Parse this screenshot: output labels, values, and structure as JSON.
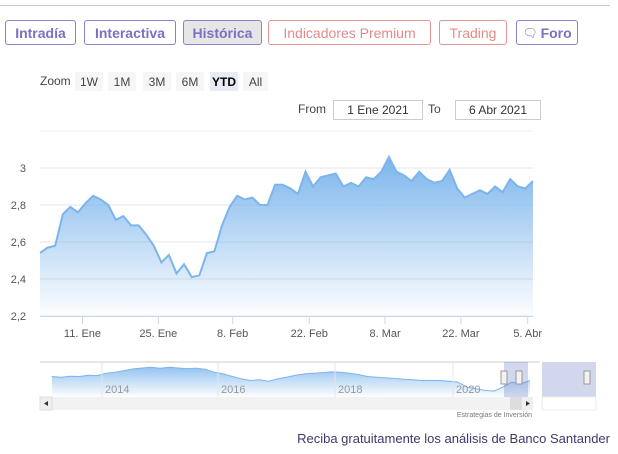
{
  "tabs": [
    {
      "label": "Intradía",
      "style": "purple"
    },
    {
      "label": "Interactiva",
      "style": "purple"
    },
    {
      "label": "Histórica",
      "style": "purple",
      "active": true
    },
    {
      "label": "Indicadores Premium",
      "style": "red"
    },
    {
      "label": "Trading",
      "style": "red"
    },
    {
      "label": "Foro",
      "style": "purple",
      "icon": "chat-bubble-icon"
    }
  ],
  "zoom": {
    "label": "Zoom",
    "buttons": [
      "1W",
      "1M",
      "3M",
      "6M",
      "YTD",
      "All"
    ],
    "selected": "YTD"
  },
  "range": {
    "from_label": "From",
    "from_value": "1 Ene 2021",
    "to_label": "To",
    "to_value": "6 Abr 2021"
  },
  "chart_data": {
    "type": "area",
    "ylim": [
      2.2,
      3.05
    ],
    "yticks": [
      "2,2",
      "2,4",
      "2,6",
      "2,8",
      "3"
    ],
    "xticks": [
      "11. Ene",
      "25. Ene",
      "8. Feb",
      "22. Feb",
      "8. Mar",
      "22. Mar",
      "5. Abr"
    ],
    "values": [
      2.54,
      2.57,
      2.58,
      2.75,
      2.79,
      2.76,
      2.81,
      2.85,
      2.83,
      2.8,
      2.72,
      2.74,
      2.69,
      2.69,
      2.64,
      2.58,
      2.49,
      2.53,
      2.43,
      2.48,
      2.41,
      2.42,
      2.54,
      2.55,
      2.69,
      2.79,
      2.85,
      2.83,
      2.84,
      2.8,
      2.8,
      2.91,
      2.91,
      2.89,
      2.86,
      2.98,
      2.9,
      2.95,
      2.96,
      2.97,
      2.9,
      2.92,
      2.9,
      2.95,
      2.94,
      2.98,
      3.06,
      2.98,
      2.96,
      2.93,
      2.98,
      2.94,
      2.92,
      2.93,
      2.99,
      2.89,
      2.84,
      2.86,
      2.88,
      2.86,
      2.9,
      2.87,
      2.94,
      2.9,
      2.89,
      2.93
    ],
    "grid": true,
    "color": "#7cb5ec",
    "navigator": {
      "xticks": [
        "2014",
        "2016",
        "2018",
        "2020"
      ]
    }
  },
  "credit": "Estrategias de Inversión",
  "footer": "Reciba gratuitamente los análisis de Banco Santander"
}
